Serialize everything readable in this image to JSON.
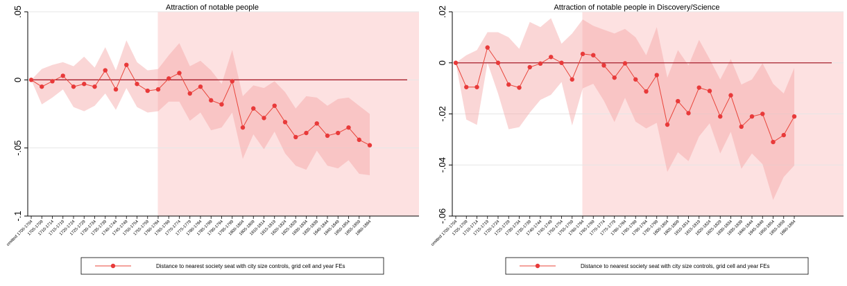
{
  "colors": {
    "line": "#e8443a",
    "marker": "#e83a3a",
    "band": "#f3a5a5",
    "shade": "#fde1e1",
    "zero_line": "#a61c2a",
    "axis": "#000000"
  },
  "legend_label": "Distance to nearest society seat with city size controls, grid cell and year FEs",
  "chart_data": [
    {
      "type": "line",
      "title": "Attraction of notable people",
      "xlabel": "",
      "ylabel": "",
      "ylim": [
        -0.1,
        0.05
      ],
      "yticks": [
        -0.1,
        -0.05,
        0,
        0.05
      ],
      "ytick_labels": [
        "-.1",
        "-.05",
        "0",
        ".05"
      ],
      "shaded_from_category": "1760-1764",
      "grid": true,
      "legend_position": "bottom",
      "categories": [
        "omitted 1700-1704",
        "1705-1709",
        "1710-1714",
        "1715-1719",
        "1720-1724",
        "1725-1729",
        "1730-1734",
        "1735-1739",
        "1740-1744",
        "1745-1749",
        "1750-1754",
        "1755-1759",
        "1760-1764",
        "1765-1769",
        "1770-1774",
        "1775-1779",
        "1780-1784",
        "1785-1789",
        "1790-1794",
        "1795-1799",
        "1800-1804",
        "1805-1809",
        "1810-1814",
        "1815-1819",
        "1820-1824",
        "1825-1829",
        "1830-1834",
        "1835-1839",
        "1840-1844",
        "1845-1849",
        "1850-1854",
        "1855-1859",
        "1860-1864"
      ],
      "series": [
        {
          "name": "Distance to nearest society seat with city size controls, grid cell and year FEs",
          "values": [
            0,
            -0.005,
            -0.001,
            0.003,
            -0.005,
            -0.003,
            -0.005,
            0.007,
            -0.007,
            0.011,
            -0.003,
            -0.008,
            -0.007,
            0.001,
            0.005,
            -0.01,
            -0.005,
            -0.015,
            -0.018,
            -0.001,
            -0.035,
            -0.021,
            -0.028,
            -0.019,
            -0.031,
            -0.042,
            -0.039,
            -0.032,
            -0.041,
            -0.039,
            -0.035,
            -0.044,
            -0.048
          ],
          "ci_upper": [
            0,
            0.008,
            0.011,
            0.013,
            0.01,
            0.017,
            0.009,
            0.024,
            0.007,
            0.029,
            0.013,
            0.007,
            0.008,
            0.018,
            0.027,
            0.01,
            0.014,
            0.007,
            -0.003,
            0.022,
            -0.012,
            -0.004,
            -0.006,
            -0.001,
            -0.009,
            -0.021,
            -0.012,
            -0.013,
            -0.019,
            -0.014,
            -0.013,
            -0.019,
            -0.025
          ],
          "ci_lower": [
            0,
            -0.018,
            -0.013,
            -0.007,
            -0.02,
            -0.023,
            -0.019,
            -0.01,
            -0.022,
            -0.006,
            -0.02,
            -0.024,
            -0.023,
            -0.016,
            -0.016,
            -0.03,
            -0.024,
            -0.037,
            -0.035,
            -0.024,
            -0.058,
            -0.04,
            -0.051,
            -0.038,
            -0.054,
            -0.063,
            -0.066,
            -0.052,
            -0.063,
            -0.065,
            -0.059,
            -0.069,
            -0.07
          ]
        }
      ]
    },
    {
      "type": "line",
      "title": "Attraction of notable people in Discovery/Science",
      "xlabel": "",
      "ylabel": "",
      "ylim": [
        -0.06,
        0.02
      ],
      "yticks": [
        -0.06,
        -0.04,
        -0.02,
        0,
        0.02
      ],
      "ytick_labels": [
        "-.06",
        "-.04",
        "-.02",
        "0",
        ".02"
      ],
      "shaded_from_category": "1760-1764",
      "grid": true,
      "legend_position": "bottom",
      "categories": [
        "omitted 1700-1704",
        "1705-1709",
        "1710-1714",
        "1715-1719",
        "1720-1724",
        "1725-1729",
        "1730-1734",
        "1735-1739",
        "1740-1744",
        "1745-1749",
        "1750-1754",
        "1755-1759",
        "1760-1764",
        "1765-1769",
        "1770-1774",
        "1775-1779",
        "1780-1784",
        "1785-1789",
        "1790-1794",
        "1795-1799",
        "1800-1804",
        "1805-1809",
        "1810-1814",
        "1815-1819",
        "1820-1824",
        "1825-1829",
        "1830-1834",
        "1835-1839",
        "1840-1844",
        "1845-1849",
        "1850-1854",
        "1855-1859",
        "1860-1864"
      ],
      "series": [
        {
          "name": "Distance to nearest society seat with city size controls, grid cell and year FEs",
          "values": [
            0,
            -0.0095,
            -0.0095,
            0.006,
            0,
            -0.0085,
            -0.0097,
            -0.0017,
            -0.0003,
            0.0023,
            0,
            -0.0065,
            0.0035,
            0.003,
            -0.001,
            -0.0058,
            -0.0002,
            -0.0065,
            -0.0112,
            -0.0048,
            -0.0242,
            -0.015,
            -0.0197,
            -0.0097,
            -0.011,
            -0.021,
            -0.0127,
            -0.025,
            -0.021,
            -0.02,
            -0.031,
            -0.0283,
            -0.021
          ],
          "ci_upper": [
            0,
            0.003,
            0.005,
            0.012,
            0.012,
            0.01,
            0.0055,
            0.016,
            0.014,
            0.0175,
            0.0075,
            0.0115,
            0.017,
            0.0145,
            0.013,
            0.0115,
            0.0133,
            0.01,
            0.003,
            0.014,
            -0.0058,
            0.005,
            -0.001,
            0.009,
            0.0015,
            -0.0065,
            0.0015,
            -0.0085,
            -0.0065,
            -0.0002,
            -0.0082,
            -0.012,
            -0.002
          ],
          "ci_lower": [
            0,
            -0.0222,
            -0.0243,
            0,
            -0.012,
            -0.026,
            -0.0252,
            -0.0195,
            -0.0145,
            -0.0125,
            -0.0075,
            -0.0245,
            -0.01,
            -0.0082,
            -0.0148,
            -0.0232,
            -0.0137,
            -0.023,
            -0.0257,
            -0.0235,
            -0.0427,
            -0.035,
            -0.0385,
            -0.0288,
            -0.0237,
            -0.0355,
            -0.027,
            -0.0415,
            -0.0355,
            -0.0397,
            -0.0537,
            -0.0447,
            -0.0402
          ]
        }
      ]
    }
  ]
}
